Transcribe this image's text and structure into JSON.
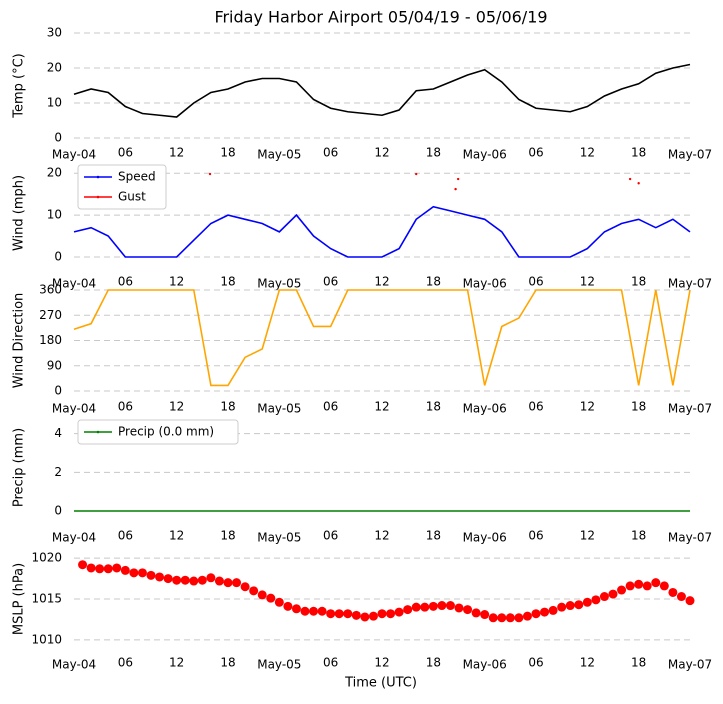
{
  "title": "Friday Harbor Airport 05/04/19 - 05/06/19",
  "xlabel": "Time (UTC)",
  "chart_data": [
    {
      "type": "line",
      "ylabel": "Temp (°C)",
      "xlim": [
        0,
        72
      ],
      "ylim": [
        0,
        30
      ],
      "yticks": [
        0,
        10,
        20,
        30
      ],
      "grid": true,
      "xticks": [
        {
          "value": 0,
          "label": "May-04"
        },
        {
          "value": 6,
          "label": "06"
        },
        {
          "value": 12,
          "label": "12"
        },
        {
          "value": 18,
          "label": "18"
        },
        {
          "value": 24,
          "label": "May-05"
        },
        {
          "value": 30,
          "label": "06"
        },
        {
          "value": 36,
          "label": "12"
        },
        {
          "value": 42,
          "label": "18"
        },
        {
          "value": 48,
          "label": "May-06"
        },
        {
          "value": 54,
          "label": "06"
        },
        {
          "value": 60,
          "label": "12"
        },
        {
          "value": 66,
          "label": "18"
        },
        {
          "value": 72,
          "label": "May-07"
        }
      ],
      "series": [
        {
          "color": "#000000",
          "x": [
            0,
            2,
            4,
            6,
            8,
            10,
            12,
            14,
            16,
            18,
            20,
            22,
            24,
            26,
            28,
            30,
            32,
            34,
            36,
            38,
            40,
            42,
            44,
            46,
            48,
            50,
            52,
            54,
            56,
            58,
            60,
            62,
            64,
            66,
            68,
            70,
            72
          ],
          "values": [
            12.5,
            14,
            13,
            9,
            7,
            6.5,
            6,
            10,
            13,
            14,
            16,
            17,
            17,
            16,
            11,
            8.5,
            7.5,
            7,
            6.5,
            8,
            13.5,
            14,
            16,
            18,
            19.5,
            16,
            11,
            8.5,
            8,
            7.5,
            9,
            12,
            14,
            15.5,
            18.5,
            20,
            21
          ]
        }
      ]
    },
    {
      "type": "line",
      "ylabel": "Wind (mph)",
      "xlim": [
        0,
        72
      ],
      "ylim": [
        0,
        21
      ],
      "yticks": [
        0,
        10,
        20
      ],
      "grid": true,
      "legend": "upper left",
      "xticks": [
        {
          "value": 0,
          "label": "May-04"
        },
        {
          "value": 6,
          "label": "06"
        },
        {
          "value": 12,
          "label": "12"
        },
        {
          "value": 18,
          "label": "18"
        },
        {
          "value": 24,
          "label": "May-05"
        },
        {
          "value": 30,
          "label": "06"
        },
        {
          "value": 36,
          "label": "12"
        },
        {
          "value": 42,
          "label": "18"
        },
        {
          "value": 48,
          "label": "May-06"
        },
        {
          "value": 54,
          "label": "06"
        },
        {
          "value": 60,
          "label": "12"
        },
        {
          "value": 66,
          "label": "18"
        },
        {
          "value": 72,
          "label": "May-07"
        }
      ],
      "series": [
        {
          "name": "Speed",
          "color": "#0000ff",
          "mode": "lines",
          "x": [
            0,
            2,
            4,
            6,
            8,
            10,
            12,
            14,
            16,
            18,
            20,
            22,
            24,
            26,
            28,
            30,
            32,
            34,
            36,
            38,
            40,
            42,
            44,
            46,
            48,
            50,
            52,
            54,
            56,
            58,
            60,
            62,
            64,
            66,
            68,
            70,
            72
          ],
          "values": [
            6,
            7,
            5,
            0,
            0,
            0,
            0,
            4,
            8,
            10,
            9,
            8,
            6,
            10,
            5,
            2,
            0,
            0,
            0,
            2,
            9,
            12,
            11,
            10,
            9,
            6,
            0,
            0,
            0,
            0,
            2,
            6,
            8,
            9,
            7,
            9,
            6
          ]
        },
        {
          "name": "Gust",
          "color": "#ff0000",
          "mode": "markers",
          "x": [
            15.9,
            40,
            44.6,
            44.9,
            65,
            66
          ],
          "values": [
            19.8,
            19.8,
            16.2,
            18.6,
            18.6,
            17.6
          ]
        }
      ]
    },
    {
      "type": "line",
      "ylabel": "Wind Direction",
      "xlim": [
        0,
        72
      ],
      "ylim": [
        0,
        360
      ],
      "yticks": [
        0,
        90,
        180,
        270,
        360
      ],
      "grid": true,
      "xticks": [
        {
          "value": 0,
          "label": "May-04"
        },
        {
          "value": 6,
          "label": "06"
        },
        {
          "value": 12,
          "label": "12"
        },
        {
          "value": 18,
          "label": "18"
        },
        {
          "value": 24,
          "label": "May-05"
        },
        {
          "value": 30,
          "label": "06"
        },
        {
          "value": 36,
          "label": "12"
        },
        {
          "value": 42,
          "label": "18"
        },
        {
          "value": 48,
          "label": "May-06"
        },
        {
          "value": 54,
          "label": "06"
        },
        {
          "value": 60,
          "label": "12"
        },
        {
          "value": 66,
          "label": "18"
        },
        {
          "value": 72,
          "label": "May-07"
        }
      ],
      "series": [
        {
          "color": "#ffa500",
          "x": [
            0,
            2,
            4,
            6,
            8,
            10,
            12,
            14,
            16,
            18,
            20,
            22,
            24,
            26,
            28,
            30,
            32,
            34,
            36,
            38,
            40,
            42,
            44,
            46,
            48,
            50,
            52,
            54,
            56,
            58,
            60,
            62,
            64,
            66,
            68,
            70,
            72
          ],
          "values": [
            220,
            240,
            360,
            360,
            360,
            360,
            360,
            360,
            20,
            20,
            120,
            150,
            360,
            360,
            230,
            230,
            360,
            360,
            360,
            360,
            360,
            360,
            360,
            360,
            20,
            230,
            260,
            360,
            360,
            360,
            360,
            360,
            360,
            20,
            360,
            20,
            360
          ]
        }
      ]
    },
    {
      "type": "line",
      "ylabel": "Precip (mm)",
      "xlim": [
        0,
        72
      ],
      "ylim": [
        0,
        4.5
      ],
      "yticks": [
        0,
        2,
        4
      ],
      "grid": true,
      "legend": "upper left",
      "xticks": [
        {
          "value": 0,
          "label": "May-04"
        },
        {
          "value": 6,
          "label": "06"
        },
        {
          "value": 12,
          "label": "12"
        },
        {
          "value": 18,
          "label": "18"
        },
        {
          "value": 24,
          "label": "May-05"
        },
        {
          "value": 30,
          "label": "06"
        },
        {
          "value": 36,
          "label": "12"
        },
        {
          "value": 42,
          "label": "18"
        },
        {
          "value": 48,
          "label": "May-06"
        },
        {
          "value": 54,
          "label": "06"
        },
        {
          "value": 60,
          "label": "12"
        },
        {
          "value": 66,
          "label": "18"
        },
        {
          "value": 72,
          "label": "May-07"
        }
      ],
      "series": [
        {
          "name": "Precip (0.0 mm)",
          "color": "#008000",
          "mode": "lines",
          "x": [
            0,
            6,
            12,
            18,
            24,
            30,
            36,
            42,
            48,
            54,
            60,
            66,
            72
          ],
          "values": [
            0,
            0,
            0,
            0,
            0,
            0,
            0,
            0,
            0,
            0,
            0,
            0,
            0
          ]
        }
      ]
    },
    {
      "type": "scatter",
      "ylabel": "MSLP (hPa)",
      "xlim": [
        0,
        72
      ],
      "ylim": [
        1009,
        1021
      ],
      "yticks": [
        1010,
        1015,
        1020
      ],
      "grid": true,
      "xticks": [
        {
          "value": 0,
          "label": "May-04"
        },
        {
          "value": 6,
          "label": "06"
        },
        {
          "value": 12,
          "label": "12"
        },
        {
          "value": 18,
          "label": "18"
        },
        {
          "value": 24,
          "label": "May-05"
        },
        {
          "value": 30,
          "label": "06"
        },
        {
          "value": 36,
          "label": "12"
        },
        {
          "value": 42,
          "label": "18"
        },
        {
          "value": 48,
          "label": "May-06"
        },
        {
          "value": 54,
          "label": "06"
        },
        {
          "value": 60,
          "label": "12"
        },
        {
          "value": 66,
          "label": "18"
        },
        {
          "value": 72,
          "label": "May-07"
        }
      ],
      "series": [
        {
          "color": "#ff0000",
          "x": [
            1,
            2,
            3,
            4,
            5,
            6,
            7,
            8,
            9,
            10,
            11,
            12,
            13,
            14,
            15,
            16,
            17,
            18,
            19,
            20,
            21,
            22,
            23,
            24,
            25,
            26,
            27,
            28,
            29,
            30,
            31,
            32,
            33,
            34,
            35,
            36,
            37,
            38,
            39,
            40,
            41,
            42,
            43,
            44,
            45,
            46,
            47,
            48,
            49,
            50,
            51,
            52,
            53,
            54,
            55,
            56,
            57,
            58,
            59,
            60,
            61,
            62,
            63,
            64,
            65,
            66,
            67,
            68,
            69,
            70,
            71,
            72
          ],
          "values": [
            1019.2,
            1018.8,
            1018.7,
            1018.7,
            1018.8,
            1018.5,
            1018.2,
            1018.2,
            1017.9,
            1017.7,
            1017.5,
            1017.3,
            1017.3,
            1017.2,
            1017.3,
            1017.6,
            1017.2,
            1017.0,
            1017.0,
            1016.5,
            1016.0,
            1015.5,
            1015.1,
            1014.6,
            1014.1,
            1013.8,
            1013.5,
            1013.5,
            1013.5,
            1013.2,
            1013.2,
            1013.2,
            1013.0,
            1012.8,
            1012.9,
            1013.2,
            1013.2,
            1013.4,
            1013.7,
            1014.0,
            1014.0,
            1014.1,
            1014.2,
            1014.2,
            1013.9,
            1013.7,
            1013.3,
            1013.1,
            1012.7,
            1012.7,
            1012.7,
            1012.7,
            1012.9,
            1013.2,
            1013.4,
            1013.6,
            1014.0,
            1014.2,
            1014.3,
            1014.6,
            1014.9,
            1015.3,
            1015.6,
            1016.1,
            1016.6,
            1016.8,
            1016.6,
            1017.0,
            1016.6,
            1015.8,
            1015.3,
            1014.8
          ]
        }
      ]
    }
  ]
}
